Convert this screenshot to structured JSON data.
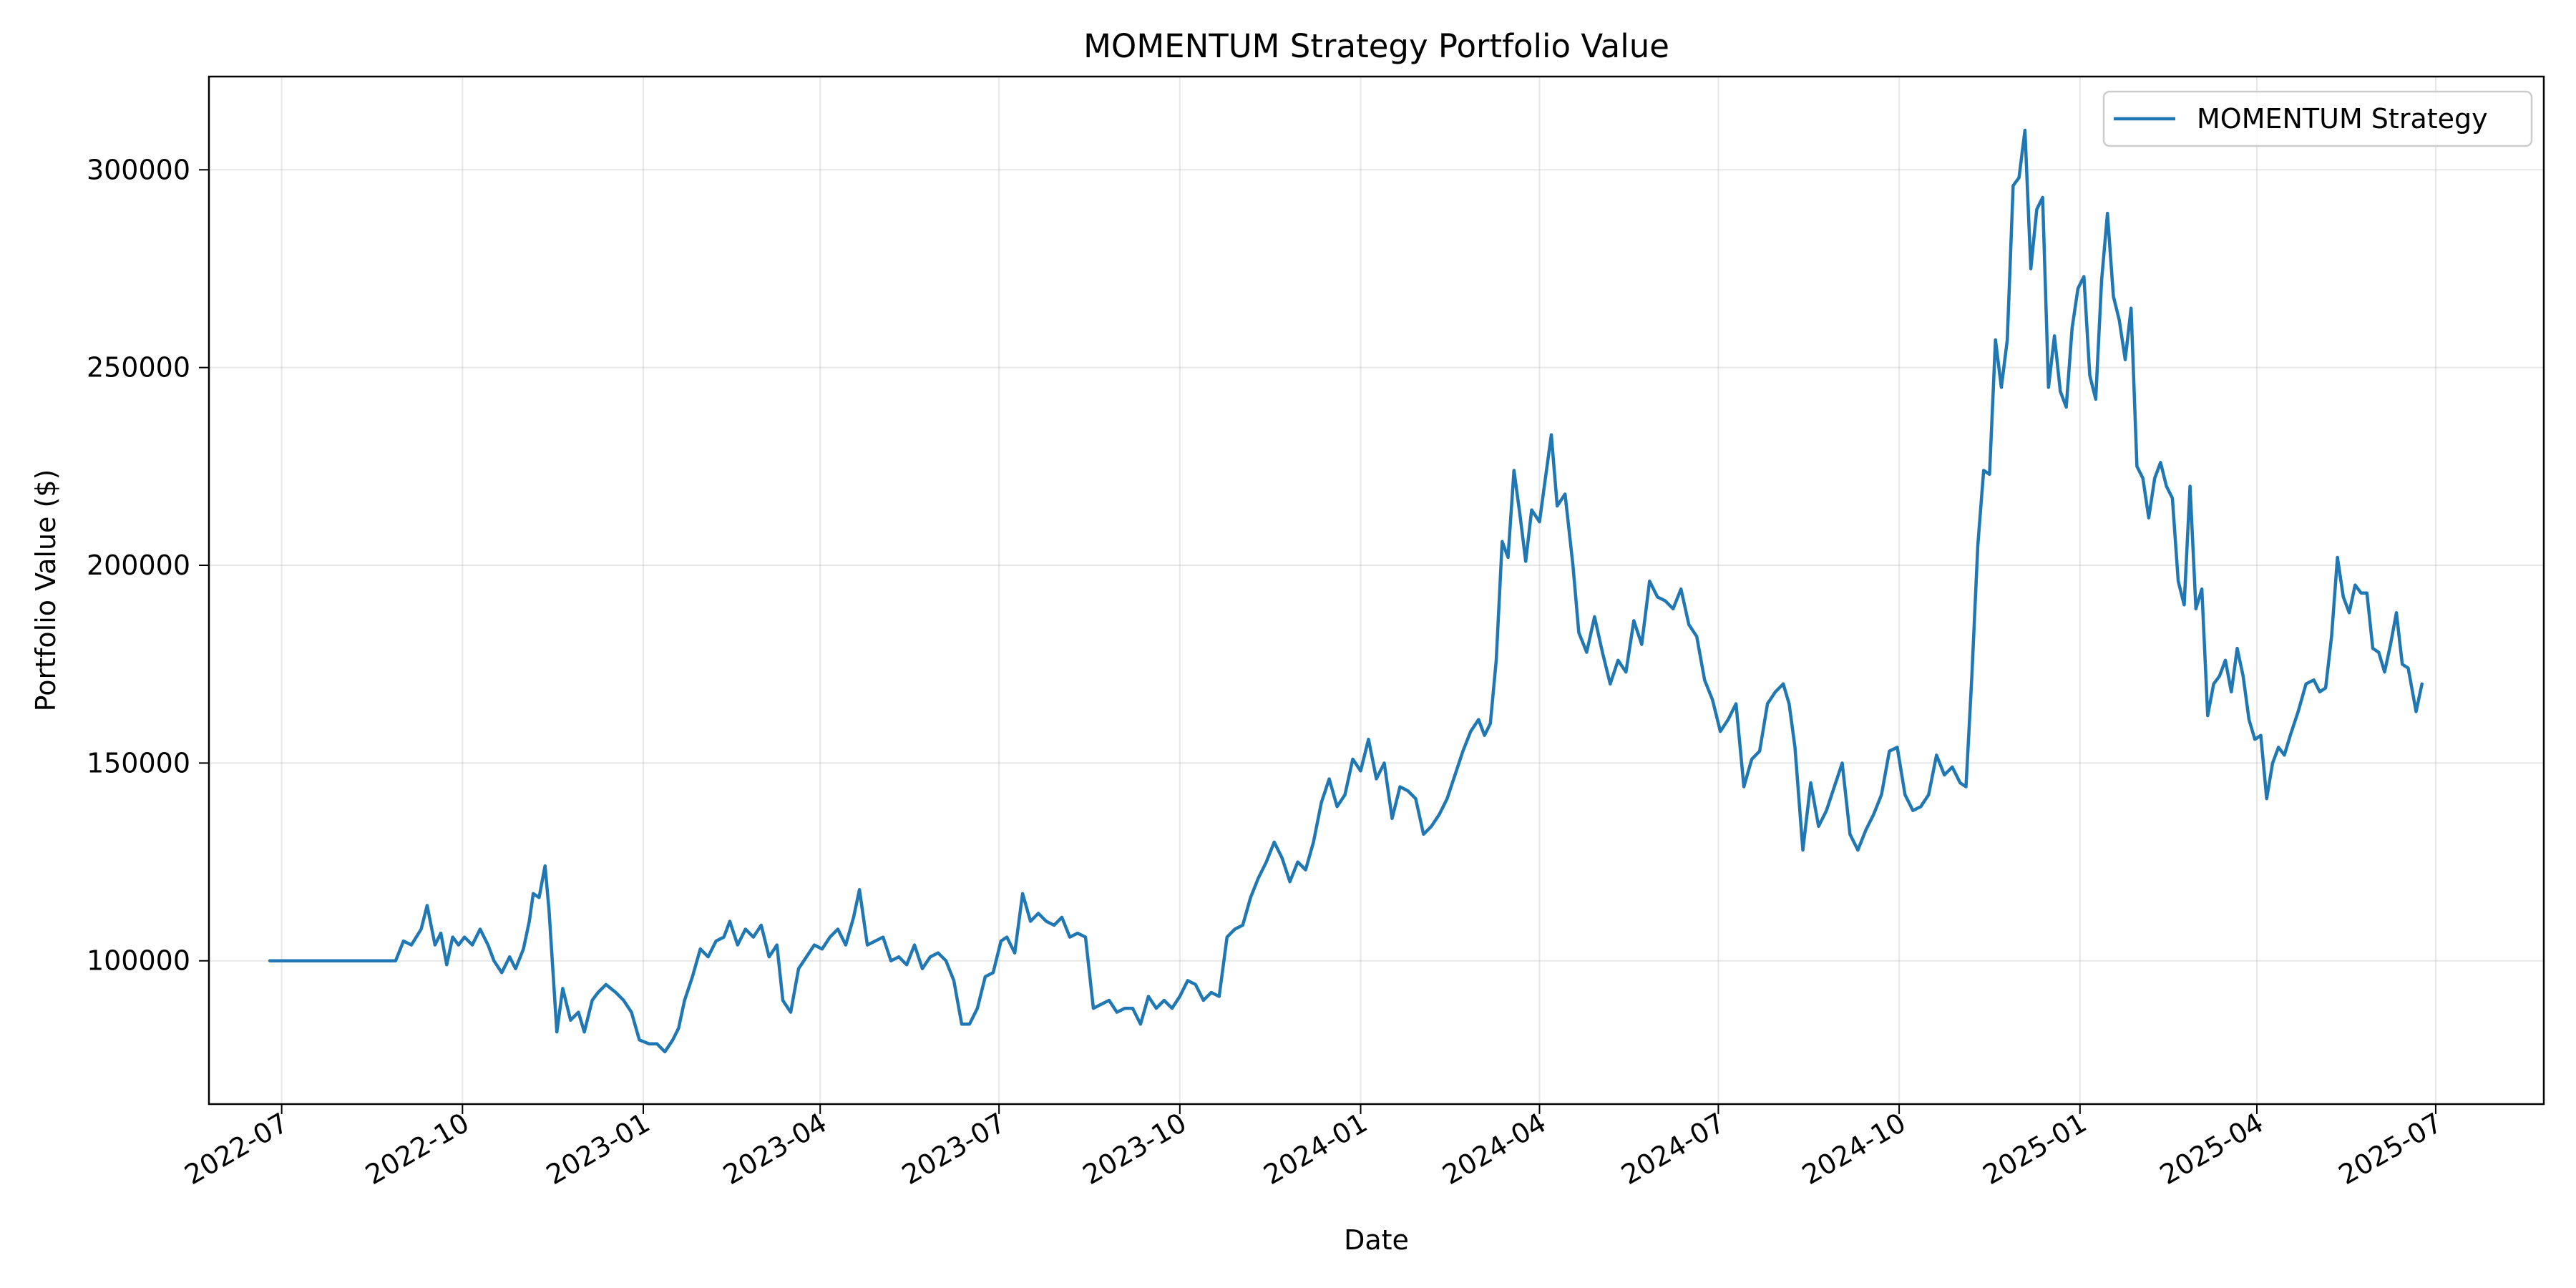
{
  "chart_data": {
    "type": "line",
    "title": "MOMENTUM Strategy Portfolio Value",
    "xlabel": "Date",
    "ylabel": "Portfolio Value ($)",
    "xlim": [
      "2022-05-25",
      "2025-08-25"
    ],
    "ylim": [
      63770,
      323570
    ],
    "x_ticks": [
      "2022-07",
      "2022-10",
      "2023-01",
      "2023-04",
      "2023-07",
      "2023-10",
      "2024-01",
      "2024-04",
      "2024-07",
      "2024-10",
      "2025-01",
      "2025-04",
      "2025-07"
    ],
    "y_ticks": [
      100000,
      150000,
      200000,
      250000,
      300000
    ],
    "grid": true,
    "legend_position": "top-right",
    "series": [
      {
        "name": "MOMENTUM Strategy",
        "color": "#1f77b4",
        "x": [
          "2022-06-25",
          "2022-08-28",
          "2022-09-01",
          "2022-09-05",
          "2022-09-10",
          "2022-09-13",
          "2022-09-17",
          "2022-09-20",
          "2022-09-23",
          "2022-09-26",
          "2022-09-29",
          "2022-10-02",
          "2022-10-06",
          "2022-10-10",
          "2022-10-14",
          "2022-10-17",
          "2022-10-21",
          "2022-10-25",
          "2022-10-28",
          "2022-11-01",
          "2022-11-04",
          "2022-11-06",
          "2022-11-09",
          "2022-11-12",
          "2022-11-14",
          "2022-11-18",
          "2022-11-21",
          "2022-11-25",
          "2022-11-29",
          "2022-12-02",
          "2022-12-06",
          "2022-12-09",
          "2022-12-13",
          "2022-12-18",
          "2022-12-22",
          "2022-12-26",
          "2022-12-30",
          "2023-01-04",
          "2023-01-08",
          "2023-01-12",
          "2023-01-16",
          "2023-01-19",
          "2023-01-22",
          "2023-01-26",
          "2023-01-30",
          "2023-02-03",
          "2023-02-07",
          "2023-02-11",
          "2023-02-14",
          "2023-02-18",
          "2023-02-22",
          "2023-02-26",
          "2023-03-02",
          "2023-03-06",
          "2023-03-10",
          "2023-03-13",
          "2023-03-17",
          "2023-03-21",
          "2023-03-25",
          "2023-03-29",
          "2023-04-02",
          "2023-04-06",
          "2023-04-10",
          "2023-04-14",
          "2023-04-18",
          "2023-04-21",
          "2023-04-25",
          "2023-04-29",
          "2023-05-03",
          "2023-05-07",
          "2023-05-11",
          "2023-05-15",
          "2023-05-19",
          "2023-05-23",
          "2023-05-27",
          "2023-05-31",
          "2023-06-04",
          "2023-06-08",
          "2023-06-12",
          "2023-06-16",
          "2023-06-20",
          "2023-06-24",
          "2023-06-28",
          "2023-07-02",
          "2023-07-05",
          "2023-07-09",
          "2023-07-13",
          "2023-07-17",
          "2023-07-21",
          "2023-07-25",
          "2023-07-29",
          "2023-08-02",
          "2023-08-06",
          "2023-08-10",
          "2023-08-14",
          "2023-08-18",
          "2023-08-22",
          "2023-08-26",
          "2023-08-30",
          "2023-09-03",
          "2023-09-07",
          "2023-09-11",
          "2023-09-15",
          "2023-09-19",
          "2023-09-23",
          "2023-09-27",
          "2023-10-01",
          "2023-10-05",
          "2023-10-09",
          "2023-10-13",
          "2023-10-17",
          "2023-10-21",
          "2023-10-25",
          "2023-10-29",
          "2023-11-02",
          "2023-11-06",
          "2023-11-10",
          "2023-11-14",
          "2023-11-18",
          "2023-11-22",
          "2023-11-26",
          "2023-11-30",
          "2023-12-04",
          "2023-12-08",
          "2023-12-12",
          "2023-12-16",
          "2023-12-20",
          "2023-12-24",
          "2023-12-28",
          "2024-01-01",
          "2024-01-05",
          "2024-01-09",
          "2024-01-13",
          "2024-01-17",
          "2024-01-21",
          "2024-01-25",
          "2024-01-29",
          "2024-02-02",
          "2024-02-06",
          "2024-02-10",
          "2024-02-14",
          "2024-02-18",
          "2024-02-22",
          "2024-02-26",
          "2024-03-01",
          "2024-03-04",
          "2024-03-07",
          "2024-03-10",
          "2024-03-13",
          "2024-03-16",
          "2024-03-19",
          "2024-03-22",
          "2024-03-25",
          "2024-03-28",
          "2024-04-01",
          "2024-04-04",
          "2024-04-07",
          "2024-04-10",
          "2024-04-14",
          "2024-04-18",
          "2024-04-21",
          "2024-04-25",
          "2024-04-29",
          "2024-05-03",
          "2024-05-07",
          "2024-05-11",
          "2024-05-15",
          "2024-05-19",
          "2024-05-23",
          "2024-05-27",
          "2024-05-31",
          "2024-06-04",
          "2024-06-08",
          "2024-06-12",
          "2024-06-16",
          "2024-06-20",
          "2024-06-24",
          "2024-06-28",
          "2024-07-02",
          "2024-07-06",
          "2024-07-10",
          "2024-07-14",
          "2024-07-18",
          "2024-07-22",
          "2024-07-26",
          "2024-07-30",
          "2024-08-03",
          "2024-08-06",
          "2024-08-09",
          "2024-08-13",
          "2024-08-17",
          "2024-08-21",
          "2024-08-25",
          "2024-08-29",
          "2024-09-02",
          "2024-09-06",
          "2024-09-10",
          "2024-09-14",
          "2024-09-18",
          "2024-09-22",
          "2024-09-26",
          "2024-09-30",
          "2024-10-04",
          "2024-10-08",
          "2024-10-12",
          "2024-10-16",
          "2024-10-20",
          "2024-10-24",
          "2024-10-28",
          "2024-11-01",
          "2024-11-04",
          "2024-11-07",
          "2024-11-10",
          "2024-11-13",
          "2024-11-16",
          "2024-11-19",
          "2024-11-22",
          "2024-11-25",
          "2024-11-28",
          "2024-12-01",
          "2024-12-04",
          "2024-12-07",
          "2024-12-10",
          "2024-12-13",
          "2024-12-16",
          "2024-12-19",
          "2024-12-22",
          "2024-12-25",
          "2024-12-28",
          "2024-12-31",
          "2025-01-03",
          "2025-01-06",
          "2025-01-09",
          "2025-01-12",
          "2025-01-15",
          "2025-01-18",
          "2025-01-21",
          "2025-01-24",
          "2025-01-27",
          "2025-01-30",
          "2025-02-02",
          "2025-02-05",
          "2025-02-08",
          "2025-02-11",
          "2025-02-14",
          "2025-02-17",
          "2025-02-20",
          "2025-02-23",
          "2025-02-26",
          "2025-03-01",
          "2025-03-04",
          "2025-03-07",
          "2025-03-10",
          "2025-03-13",
          "2025-03-16",
          "2025-03-19",
          "2025-03-22",
          "2025-03-25",
          "2025-03-28",
          "2025-03-31",
          "2025-04-03",
          "2025-04-06",
          "2025-04-09",
          "2025-04-12",
          "2025-04-15",
          "2025-04-18",
          "2025-04-22",
          "2025-04-26",
          "2025-04-30",
          "2025-05-03",
          "2025-05-06",
          "2025-05-09",
          "2025-05-12",
          "2025-05-15",
          "2025-05-18",
          "2025-05-21",
          "2025-05-24",
          "2025-05-27",
          "2025-05-30",
          "2025-06-02",
          "2025-06-05",
          "2025-06-08",
          "2025-06-11",
          "2025-06-14",
          "2025-06-17",
          "2025-06-21",
          "2025-06-24"
        ],
        "y": [
          100000,
          100000,
          105000,
          104000,
          108000,
          114000,
          104000,
          107000,
          99000,
          106000,
          104000,
          106000,
          104000,
          108000,
          104000,
          100000,
          97000,
          101000,
          98000,
          103000,
          110000,
          117000,
          116000,
          124000,
          113000,
          82000,
          93000,
          85000,
          87000,
          82000,
          90000,
          92000,
          94000,
          92000,
          90000,
          87000,
          80000,
          79000,
          79000,
          77000,
          80000,
          83000,
          90000,
          96000,
          103000,
          101000,
          105000,
          106000,
          110000,
          104000,
          108000,
          106000,
          109000,
          101000,
          104000,
          90000,
          87000,
          98000,
          101000,
          104000,
          103000,
          106000,
          108000,
          104000,
          111000,
          118000,
          104000,
          105000,
          106000,
          100000,
          101000,
          99000,
          104000,
          98000,
          101000,
          102000,
          100000,
          95000,
          84000,
          84000,
          88000,
          96000,
          97000,
          105000,
          106000,
          102000,
          117000,
          110000,
          112000,
          110000,
          109000,
          111000,
          106000,
          107000,
          106000,
          88000,
          89000,
          90000,
          87000,
          88000,
          88000,
          84000,
          91000,
          88000,
          90000,
          88000,
          91000,
          95000,
          94000,
          90000,
          92000,
          91000,
          106000,
          108000,
          109000,
          116000,
          121000,
          125000,
          130000,
          126000,
          120000,
          125000,
          123000,
          130000,
          140000,
          146000,
          139000,
          142000,
          151000,
          148000,
          156000,
          146000,
          150000,
          136000,
          144000,
          143000,
          141000,
          132000,
          134000,
          137000,
          141000,
          147000,
          153000,
          158000,
          161000,
          157000,
          160000,
          176000,
          206000,
          202000,
          224000,
          213000,
          201000,
          214000,
          211000,
          222000,
          233000,
          215000,
          218000,
          200000,
          183000,
          178000,
          187000,
          178000,
          170000,
          176000,
          173000,
          186000,
          180000,
          196000,
          192000,
          191000,
          189000,
          194000,
          185000,
          182000,
          171000,
          166000,
          158000,
          161000,
          165000,
          144000,
          151000,
          153000,
          165000,
          168000,
          170000,
          165000,
          154000,
          128000,
          145000,
          134000,
          138000,
          144000,
          150000,
          132000,
          128000,
          133000,
          137000,
          142000,
          153000,
          154000,
          142000,
          138000,
          139000,
          142000,
          152000,
          147000,
          149000,
          145000,
          144000,
          172000,
          205000,
          224000,
          223000,
          257000,
          245000,
          257000,
          296000,
          298000,
          310000,
          275000,
          290000,
          293000,
          245000,
          258000,
          244000,
          240000,
          260000,
          270000,
          273000,
          248000,
          242000,
          272000,
          289000,
          268000,
          262000,
          252000,
          265000,
          225000,
          222000,
          212000,
          222000,
          226000,
          220000,
          217000,
          196000,
          190000,
          220000,
          189000,
          194000,
          162000,
          170000,
          172000,
          176000,
          168000,
          179000,
          172000,
          161000,
          156000,
          157000,
          141000,
          150000,
          154000,
          152000,
          157000,
          163000,
          170000,
          171000,
          168000,
          169000,
          182000,
          202000,
          192000,
          188000,
          195000,
          193000,
          193000,
          179000,
          178000,
          173000,
          180000,
          188000,
          175000,
          174000,
          163000,
          170000
        ]
      }
    ]
  }
}
